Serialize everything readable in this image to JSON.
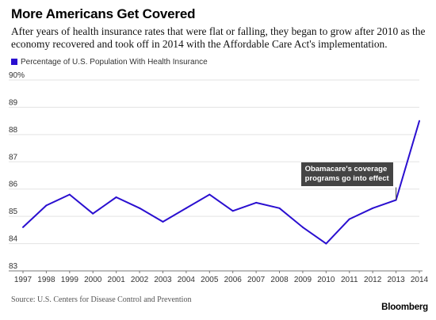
{
  "header": {
    "title": "More Americans Get Covered",
    "subtitle": "After years of health insurance rates that were flat or falling, they began to grow after 2010 as the economy recovered and took off in 2014 with the Affordable Care Act's implementation."
  },
  "footer": {
    "source": "Source: U.S. Centers for Disease Control and Prevention",
    "brand": "Bloomberg"
  },
  "annotation": {
    "line1": "Obamacare's coverage",
    "line2": "programs go into effect"
  },
  "colors": {
    "series": "#2a0fd0",
    "grid": "#e3e3e3",
    "axis": "#777777",
    "callout_bg": "#444444"
  },
  "chart_data": {
    "type": "line",
    "title": "More Americans Get Covered",
    "xlabel": "",
    "ylabel": "",
    "ylim": [
      83,
      90
    ],
    "y_ticks": [
      "83",
      "84",
      "85",
      "86",
      "87",
      "88",
      "89",
      "90%"
    ],
    "x": [
      "1997",
      "1998",
      "1999",
      "2000",
      "2001",
      "2002",
      "2003",
      "2004",
      "2005",
      "2006",
      "2007",
      "2008",
      "2009",
      "2010",
      "2011",
      "2012",
      "2013",
      "2014"
    ],
    "series": [
      {
        "name": "Percentage of U.S. Population With Health Insurance",
        "values": [
          84.6,
          85.4,
          85.8,
          85.1,
          85.7,
          85.3,
          84.8,
          85.3,
          85.8,
          85.2,
          85.5,
          85.3,
          84.6,
          84.0,
          84.9,
          85.3,
          85.6,
          88.5
        ]
      }
    ],
    "grid": true,
    "legend": "top-left"
  }
}
